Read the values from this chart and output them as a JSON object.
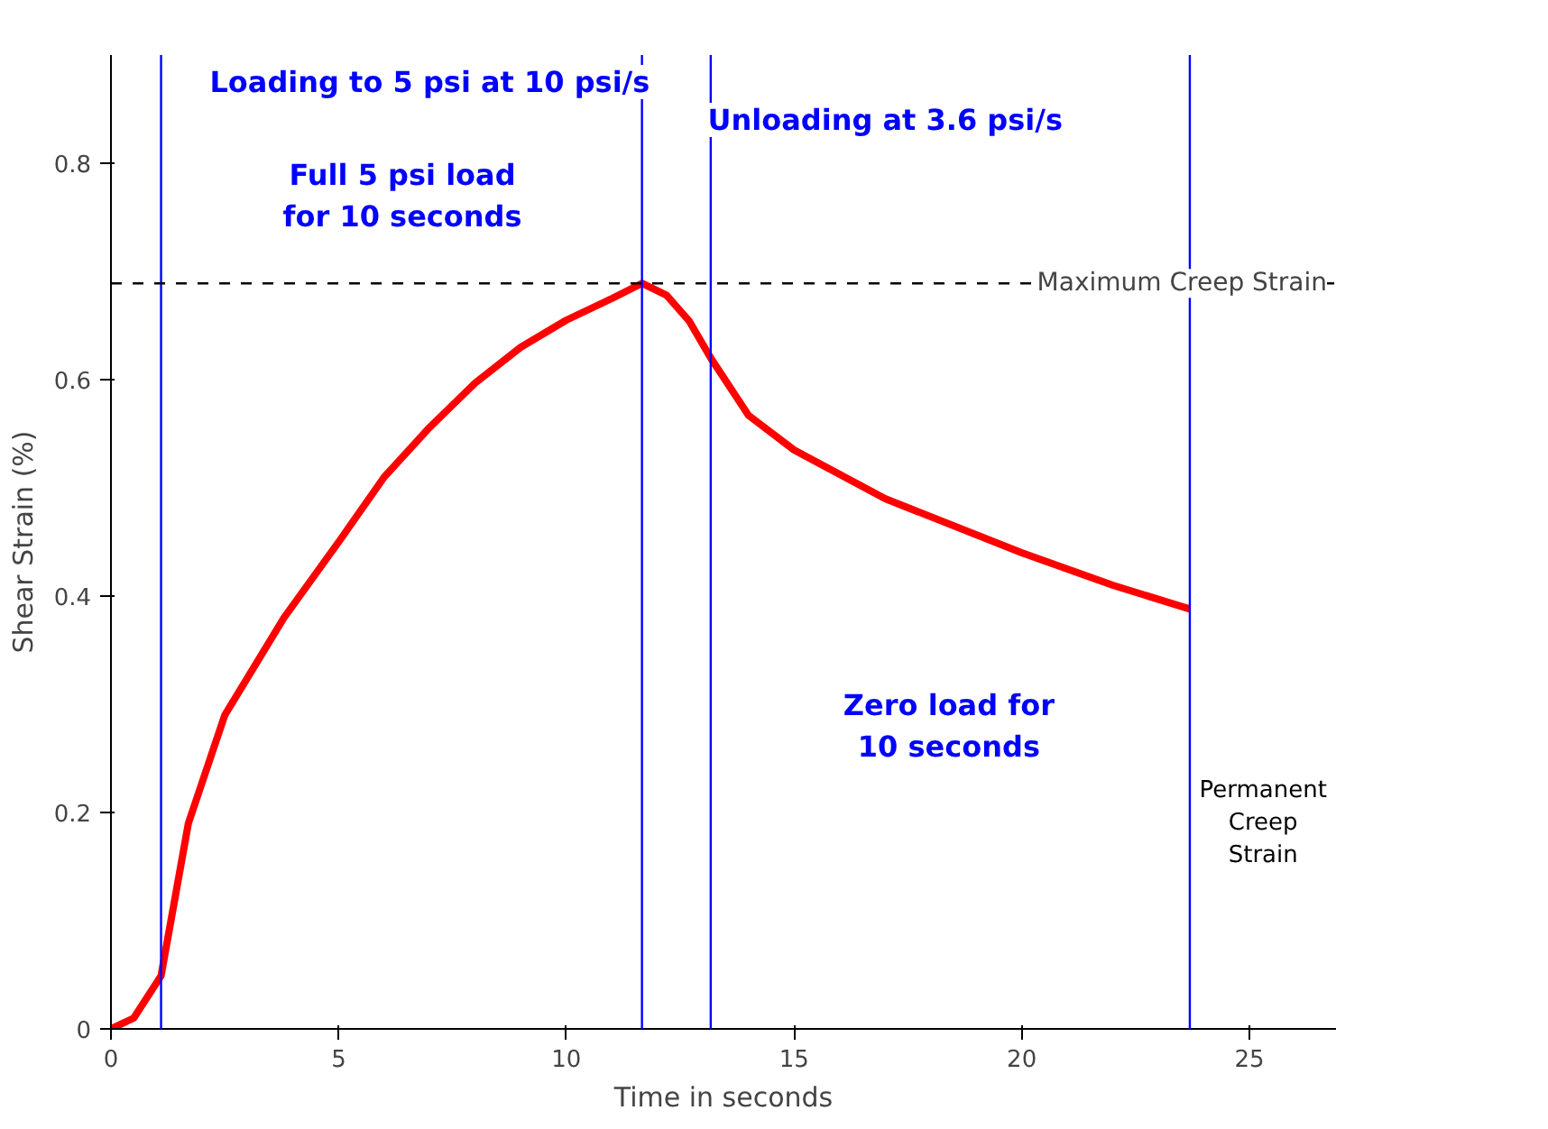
{
  "chart_data": {
    "type": "line",
    "xlabel": "Time in seconds",
    "ylabel": "Shear Strain (%)",
    "x": [
      0,
      0.5,
      1.1,
      1.7,
      2.5,
      3.8,
      5,
      6,
      7,
      8,
      9,
      10,
      11,
      11.66,
      12.2,
      12.7,
      13.17,
      14,
      15,
      17,
      20,
      22,
      23.69
    ],
    "series": [
      {
        "color": "#ff0000",
        "values": [
          0,
          0.01,
          0.049,
          0.19,
          0.29,
          0.38,
          0.45,
          0.51,
          0.556,
          0.597,
          0.63,
          0.655,
          0.675,
          0.689,
          0.678,
          0.654,
          0.62,
          0.567,
          0.535,
          0.49,
          0.44,
          0.41,
          0.388
        ]
      }
    ],
    "xlim": [
      0,
      26.9
    ],
    "ylim": [
      0,
      0.9
    ],
    "xticks": [
      0,
      5,
      10,
      15,
      20,
      25
    ],
    "yticks": [
      0,
      0.2,
      0.4,
      0.6,
      0.8
    ],
    "ref_lines": [
      {
        "axis": "x",
        "value": 1.1,
        "color": "#0000ff"
      },
      {
        "axis": "x",
        "value": 11.66,
        "color": "#0000ff"
      },
      {
        "axis": "x",
        "value": 13.17,
        "color": "#0000ff"
      },
      {
        "axis": "x",
        "value": 23.69,
        "color": "#0000ff"
      },
      {
        "axis": "y",
        "value": 0.689,
        "label": "Maximum Creep Strain",
        "color": "#000000",
        "line_style": "dashed"
      }
    ],
    "annotations": [
      "Loading to 5 psi at 10 psi/s",
      "Full 5 psi load\nfor 10 seconds",
      "Unloading at 3.6 psi/s",
      "Zero load for\n10 seconds",
      "Permanent\nCreep\nStrain"
    ],
    "grid": false,
    "marker": "none",
    "line_style": "solid"
  }
}
